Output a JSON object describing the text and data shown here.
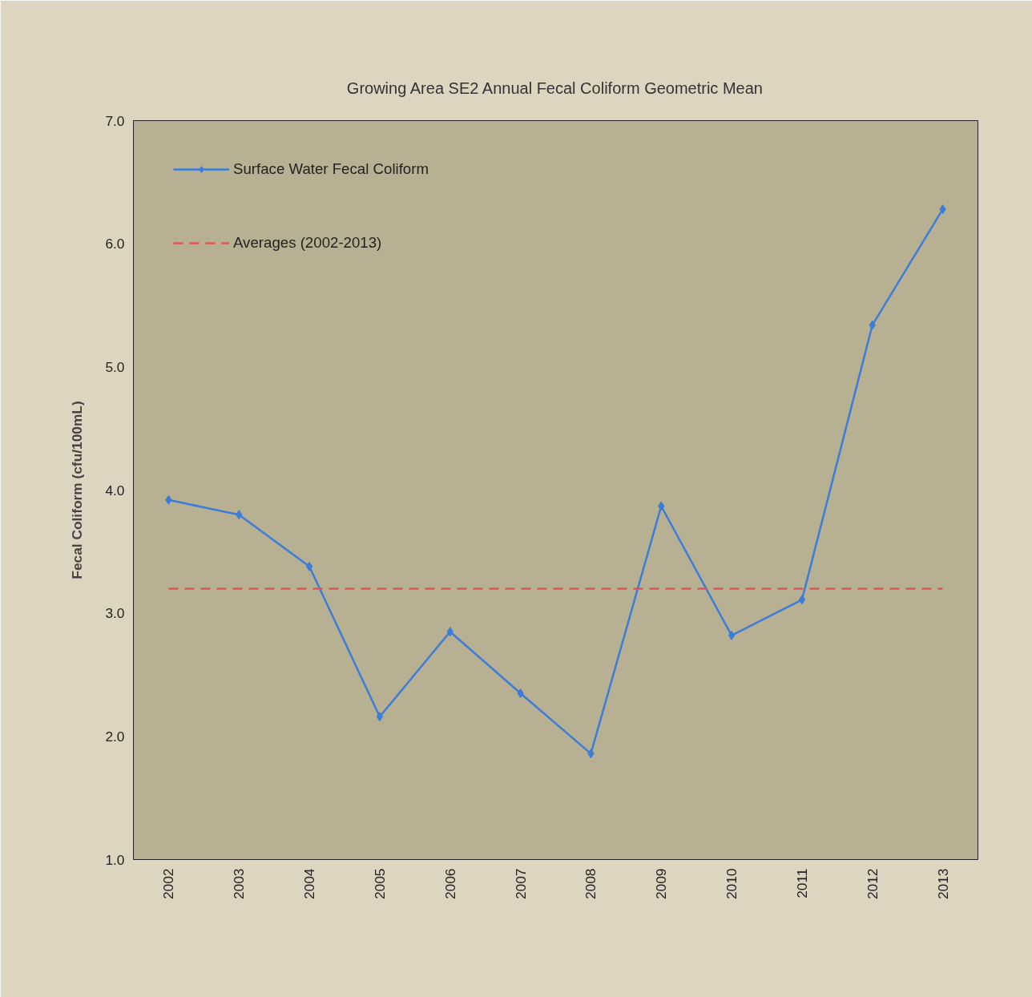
{
  "chart_data": {
    "type": "line",
    "title": "Growing Area SE2 Annual Fecal Coliform Geometric Mean",
    "ylabel": "Fecal Coliform (cfu/100mL)",
    "categories": [
      "2002",
      "2003",
      "2004",
      "2005",
      "2006",
      "2007",
      "2008",
      "2009",
      "2010",
      "2011",
      "2012",
      "2013"
    ],
    "series": [
      {
        "name": "Surface Water Fecal Coliform",
        "color": "#3b7dd8",
        "marker": "diamond",
        "line_style": "solid",
        "values": [
          3.92,
          3.8,
          3.38,
          2.16,
          2.85,
          2.35,
          1.86,
          3.87,
          2.82,
          3.11,
          5.34,
          6.28
        ]
      },
      {
        "name": "Averages (2002-2013)",
        "color": "#e05555",
        "marker": "none",
        "line_style": "dashed",
        "values": [
          3.2,
          3.2,
          3.2,
          3.2,
          3.2,
          3.2,
          3.2,
          3.2,
          3.2,
          3.2,
          3.2,
          3.2
        ]
      }
    ],
    "ylim": [
      1,
      7
    ],
    "yticks": [
      {
        "value": 1,
        "label": "1.0"
      },
      {
        "value": 2,
        "label": "2.0"
      },
      {
        "value": 3,
        "label": "3.0"
      },
      {
        "value": 4,
        "label": "4.0"
      },
      {
        "value": 5,
        "label": "5.0"
      },
      {
        "value": 6,
        "label": "6.0"
      },
      {
        "value": 7,
        "label": "7.0"
      }
    ],
    "grid": false,
    "legend": "top left"
  }
}
